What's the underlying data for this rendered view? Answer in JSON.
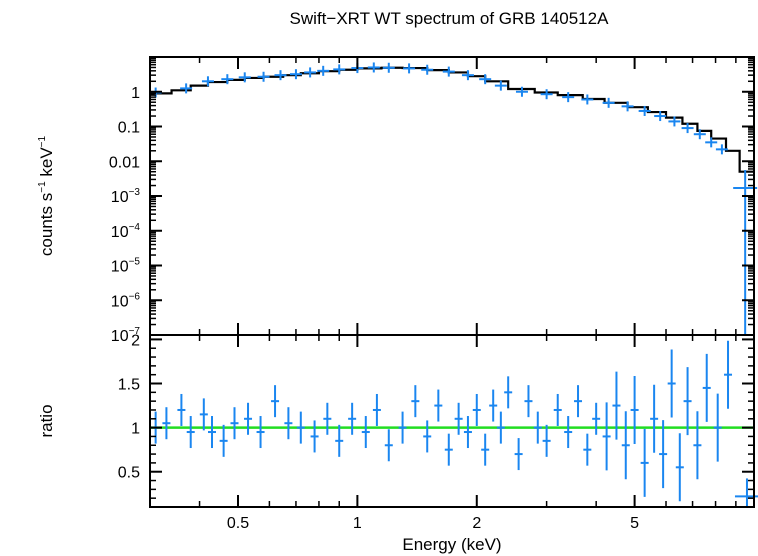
{
  "chart_data": [
    {
      "type": "scatter",
      "panel": "spectrum",
      "title": "Swift−XRT WT spectrum of GRB 140512A",
      "ylabel": {
        "base": "counts s",
        "exp1": "−1",
        "mid": " keV",
        "exp2": "−1"
      },
      "xscale": "log",
      "yscale": "log",
      "xlim": [
        0.3,
        10
      ],
      "ylim": [
        1e-07,
        10
      ],
      "ytick_labels": [
        {
          "value": 1,
          "base": "1",
          "exp": ""
        },
        {
          "value": 0.1,
          "base": "0.1",
          "exp": ""
        },
        {
          "value": 0.01,
          "base": "0.01",
          "exp": ""
        },
        {
          "value": 0.001,
          "base": "10",
          "exp": "−3"
        },
        {
          "value": 0.0001,
          "base": "10",
          "exp": "−4"
        },
        {
          "value": 1e-05,
          "base": "10",
          "exp": "−5"
        },
        {
          "value": 1e-06,
          "base": "10",
          "exp": "−6"
        },
        {
          "value": 1e-07,
          "base": "10",
          "exp": "−7"
        }
      ],
      "series": [
        {
          "style": "data-with-errorbars",
          "color": "#1a86f0",
          "points": [
            [
              0.31,
              0.95
            ],
            [
              0.37,
              1.25
            ],
            [
              0.42,
              2.0
            ],
            [
              0.47,
              2.3
            ],
            [
              0.52,
              2.6
            ],
            [
              0.58,
              2.7
            ],
            [
              0.64,
              3.0
            ],
            [
              0.7,
              3.2
            ],
            [
              0.76,
              3.6
            ],
            [
              0.82,
              4.0
            ],
            [
              0.9,
              4.4
            ],
            [
              1.0,
              4.8
            ],
            [
              1.1,
              5.0
            ],
            [
              1.2,
              4.9
            ],
            [
              1.35,
              4.7
            ],
            [
              1.5,
              4.3
            ],
            [
              1.7,
              3.8
            ],
            [
              1.9,
              3.0
            ],
            [
              2.1,
              2.3
            ],
            [
              2.3,
              1.5
            ],
            [
              2.6,
              1.0
            ],
            [
              3.0,
              0.85
            ],
            [
              3.4,
              0.7
            ],
            [
              3.8,
              0.6
            ],
            [
              4.3,
              0.48
            ],
            [
              4.8,
              0.38
            ],
            [
              5.3,
              0.28
            ],
            [
              5.8,
              0.2
            ],
            [
              6.3,
              0.14
            ],
            [
              6.8,
              0.09
            ],
            [
              7.3,
              0.06
            ],
            [
              7.8,
              0.035
            ],
            [
              8.3,
              0.022
            ],
            [
              9.5,
              0.0017
            ]
          ]
        },
        {
          "style": "model-step",
          "color": "#000000",
          "points": [
            [
              0.3,
              0.9
            ],
            [
              0.34,
              1.1
            ],
            [
              0.38,
              1.5
            ],
            [
              0.42,
              1.9
            ],
            [
              0.47,
              2.2
            ],
            [
              0.52,
              2.5
            ],
            [
              0.58,
              2.7
            ],
            [
              0.65,
              3.0
            ],
            [
              0.72,
              3.4
            ],
            [
              0.8,
              3.9
            ],
            [
              0.9,
              4.3
            ],
            [
              1.0,
              4.7
            ],
            [
              1.15,
              4.9
            ],
            [
              1.3,
              4.8
            ],
            [
              1.5,
              4.2
            ],
            [
              1.7,
              3.6
            ],
            [
              1.9,
              2.8
            ],
            [
              2.1,
              2.0
            ],
            [
              2.4,
              1.2
            ],
            [
              2.8,
              0.95
            ],
            [
              3.2,
              0.8
            ],
            [
              3.7,
              0.62
            ],
            [
              4.2,
              0.48
            ],
            [
              4.8,
              0.36
            ],
            [
              5.4,
              0.26
            ],
            [
              6.0,
              0.18
            ],
            [
              6.6,
              0.12
            ],
            [
              7.2,
              0.075
            ],
            [
              7.8,
              0.045
            ],
            [
              8.5,
              0.02
            ],
            [
              9.2,
              0.005
            ],
            [
              10,
              0.005
            ]
          ]
        }
      ]
    },
    {
      "type": "scatter",
      "panel": "ratio",
      "xlabel": "Energy (keV)",
      "ylabel": "ratio",
      "xscale": "log",
      "xlim": [
        0.3,
        10
      ],
      "ylim": [
        0.1,
        2.05
      ],
      "x_ticks": [
        {
          "value": 0.5,
          "label": "0.5"
        },
        {
          "value": 1,
          "label": "1"
        },
        {
          "value": 2,
          "label": "2"
        },
        {
          "value": 5,
          "label": "5"
        }
      ],
      "y_ticks": [
        {
          "value": 0.5,
          "label": "0.5"
        },
        {
          "value": 1,
          "label": "1"
        },
        {
          "value": 1.5,
          "label": "1.5"
        },
        {
          "value": 2,
          "label": "2"
        }
      ],
      "reference_line": {
        "value": 1,
        "color": "#22dd22"
      },
      "series": [
        {
          "style": "data-with-errorbars",
          "color": "#1a86f0",
          "points": [
            [
              0.31,
              1.0
            ],
            [
              0.33,
              1.05
            ],
            [
              0.36,
              1.2
            ],
            [
              0.38,
              0.95
            ],
            [
              0.41,
              1.15
            ],
            [
              0.43,
              0.95
            ],
            [
              0.46,
              0.85
            ],
            [
              0.49,
              1.05
            ],
            [
              0.53,
              1.1
            ],
            [
              0.57,
              0.95
            ],
            [
              0.62,
              1.3
            ],
            [
              0.67,
              1.05
            ],
            [
              0.72,
              1.0
            ],
            [
              0.78,
              0.9
            ],
            [
              0.84,
              1.1
            ],
            [
              0.9,
              0.85
            ],
            [
              0.97,
              1.1
            ],
            [
              1.05,
              0.95
            ],
            [
              1.12,
              1.2
            ],
            [
              1.2,
              0.8
            ],
            [
              1.3,
              1.0
            ],
            [
              1.4,
              1.3
            ],
            [
              1.5,
              0.9
            ],
            [
              1.6,
              1.25
            ],
            [
              1.7,
              0.75
            ],
            [
              1.8,
              1.1
            ],
            [
              1.9,
              0.95
            ],
            [
              2.0,
              1.2
            ],
            [
              2.1,
              0.75
            ],
            [
              2.2,
              1.25
            ],
            [
              2.3,
              1.0
            ],
            [
              2.4,
              1.4
            ],
            [
              2.55,
              0.7
            ],
            [
              2.7,
              1.3
            ],
            [
              2.85,
              1.0
            ],
            [
              3.0,
              0.85
            ],
            [
              3.2,
              1.2
            ],
            [
              3.4,
              0.95
            ],
            [
              3.6,
              1.3
            ],
            [
              3.8,
              0.75
            ],
            [
              4.0,
              1.1
            ],
            [
              4.25,
              0.9
            ],
            [
              4.5,
              1.25
            ],
            [
              4.75,
              0.8
            ],
            [
              5.0,
              1.2
            ],
            [
              5.3,
              0.6
            ],
            [
              5.6,
              1.1
            ],
            [
              5.9,
              0.7
            ],
            [
              6.2,
              1.5
            ],
            [
              6.5,
              0.55
            ],
            [
              6.8,
              1.3
            ],
            [
              7.2,
              0.8
            ],
            [
              7.6,
              1.45
            ],
            [
              8.1,
              1.0
            ],
            [
              8.6,
              1.6
            ],
            [
              9.6,
              0.22
            ]
          ]
        }
      ]
    }
  ]
}
